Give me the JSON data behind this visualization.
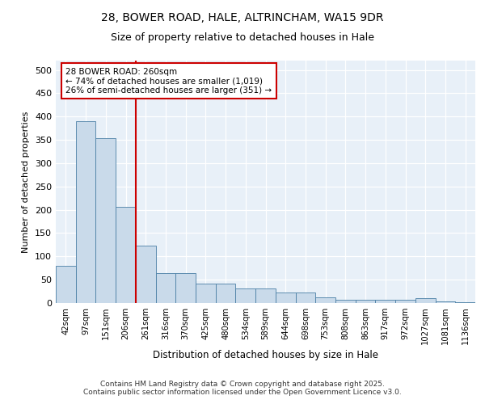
{
  "title1": "28, BOWER ROAD, HALE, ALTRINCHAM, WA15 9DR",
  "title2": "Size of property relative to detached houses in Hale",
  "xlabel": "Distribution of detached houses by size in Hale",
  "ylabel": "Number of detached properties",
  "categories": [
    "42sqm",
    "97sqm",
    "151sqm",
    "206sqm",
    "261sqm",
    "316sqm",
    "370sqm",
    "425sqm",
    "480sqm",
    "534sqm",
    "589sqm",
    "644sqm",
    "698sqm",
    "753sqm",
    "808sqm",
    "863sqm",
    "917sqm",
    "972sqm",
    "1027sqm",
    "1081sqm",
    "1136sqm"
  ],
  "values": [
    80,
    390,
    353,
    206,
    123,
    64,
    64,
    42,
    42,
    32,
    32,
    22,
    22,
    13,
    7,
    7,
    7,
    7,
    10,
    3,
    2
  ],
  "bar_color": "#c9daea",
  "bar_edge_color": "#4a7fa5",
  "vline_color": "#cc0000",
  "annotation_text": "28 BOWER ROAD: 260sqm\n← 74% of detached houses are smaller (1,019)\n26% of semi-detached houses are larger (351) →",
  "annotation_box_color": "#ffffff",
  "annotation_box_edge": "#cc0000",
  "footer_text": "Contains HM Land Registry data © Crown copyright and database right 2025.\nContains public sector information licensed under the Open Government Licence v3.0.",
  "ylim": [
    0,
    520
  ],
  "yticks": [
    0,
    50,
    100,
    150,
    200,
    250,
    300,
    350,
    400,
    450,
    500
  ],
  "bg_color": "#e8f0f8",
  "grid_color": "#ffffff",
  "title_fontsize": 10,
  "subtitle_fontsize": 9
}
